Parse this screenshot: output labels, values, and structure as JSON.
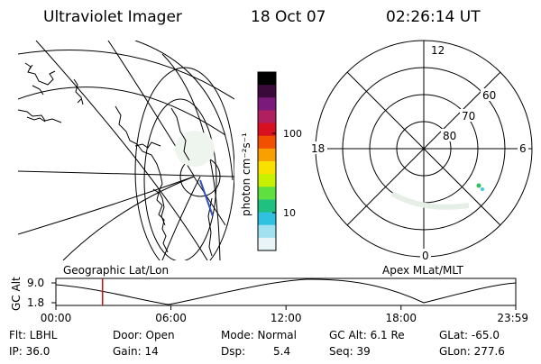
{
  "header": {
    "instrument": "Ultraviolet Imager",
    "date": "18 Oct 07",
    "time": "02:26:14 UT"
  },
  "colorbar": {
    "label": "photon cm⁻²s⁻¹",
    "ticks": [
      "100",
      "10"
    ],
    "colors": [
      "#000000",
      "#3a0a3a",
      "#7a1a7a",
      "#b02060",
      "#d81020",
      "#f05000",
      "#f8a000",
      "#f8e000",
      "#c8f000",
      "#60e040",
      "#20c080",
      "#30c0e0",
      "#a0e0f0",
      "#e8f4f8"
    ]
  },
  "map_labels": {
    "left": "Geographic Lat/Lon",
    "right": "Apex MLat/MLT"
  },
  "polar": {
    "mlt_labels": {
      "top": "12",
      "bottom": "0",
      "left": "18",
      "right": "6"
    },
    "lat_labels": [
      "60",
      "70",
      "80"
    ]
  },
  "timeline": {
    "y_axis_label": "GC Alt",
    "y_ticks": [
      "9.0",
      "1.8"
    ],
    "x_ticks": [
      "00:00",
      "06:00",
      "12:00",
      "18:00",
      "23:59"
    ],
    "marker_time": "02:26"
  },
  "info": {
    "row1": {
      "flt": "Flt: LBHL",
      "door": "Door: Open",
      "mode": "Mode: Normal",
      "gcalt": "GC Alt: 6.1 Re",
      "glat": "GLat: -65.0"
    },
    "row2": {
      "ip": "IP: 36.0",
      "gain": "Gain: 14",
      "dsp_label": "Dsp:",
      "dsp_value": "5.4",
      "seq": "Seq: 39",
      "glon": "GLon: 277.6"
    }
  }
}
